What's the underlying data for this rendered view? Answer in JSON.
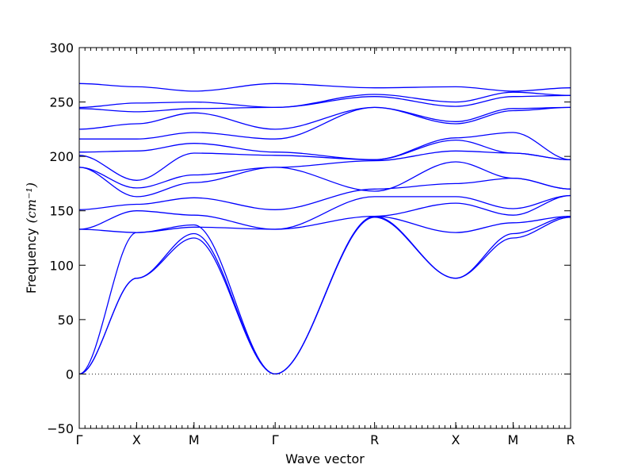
{
  "chart_data": {
    "type": "line",
    "xlabel": "Wave vector",
    "ylabel": "Frequency",
    "ylabel_unit": "(cm⁻¹)",
    "ylim": [
      -50,
      300
    ],
    "yticks": [
      -50,
      0,
      50,
      100,
      150,
      200,
      250,
      300
    ],
    "grid": false,
    "legend": "none",
    "zero_line": "dotted",
    "line_color": "#0000ff",
    "path_labels": [
      "Γ",
      "X",
      "M",
      "Γ",
      "R",
      "X",
      "M",
      "R"
    ],
    "path_positions": [
      0,
      0.5,
      1.0,
      1.707,
      2.573,
      3.28,
      3.78,
      4.281
    ],
    "bands": [
      {
        "name": "",
        "x": [
          0,
          0.5,
          1.0,
          1.707,
          2.573,
          3.28,
          3.78,
          4.281
        ],
        "y": [
          0,
          88,
          125,
          0,
          144,
          88,
          125,
          144
        ]
      },
      {
        "name": "",
        "x": [
          0,
          0.5,
          1.0,
          1.707,
          2.573,
          3.28,
          3.78,
          4.281
        ],
        "y": [
          0,
          88,
          129,
          0,
          145,
          88,
          129,
          145
        ]
      },
      {
        "name": "",
        "x": [
          0,
          0.5,
          1.0,
          1.707,
          2.573,
          3.28,
          3.78,
          4.281
        ],
        "y": [
          0,
          130,
          137,
          0,
          145,
          130,
          139,
          145
        ]
      },
      {
        "name": "",
        "x": [
          0,
          0.5,
          1.0,
          1.707,
          2.573,
          3.28,
          3.78,
          4.281
        ],
        "y": [
          133,
          130,
          135,
          133,
          145,
          157,
          146,
          164
        ]
      },
      {
        "name": "",
        "x": [
          0,
          0.5,
          1.0,
          1.707,
          2.573,
          3.28,
          3.78,
          4.281
        ],
        "y": [
          133,
          150,
          146,
          133,
          163,
          163,
          152,
          164
        ]
      },
      {
        "name": "",
        "x": [
          0,
          0.5,
          1.0,
          1.707,
          2.573,
          3.28,
          3.78,
          4.281
        ],
        "y": [
          151,
          156,
          162,
          151,
          170,
          175,
          180,
          170
        ]
      },
      {
        "name": "",
        "x": [
          0,
          0.5,
          1.0,
          1.707,
          2.573,
          3.28,
          3.78,
          4.281
        ],
        "y": [
          190,
          163,
          176,
          190,
          168,
          195,
          180,
          170
        ]
      },
      {
        "name": "",
        "x": [
          0,
          0.5,
          1.0,
          1.707,
          2.573,
          3.28,
          3.78,
          4.281
        ],
        "y": [
          190,
          171,
          183,
          190,
          196,
          205,
          203,
          197
        ]
      },
      {
        "name": "",
        "x": [
          0,
          0.5,
          1.0,
          1.707,
          2.573,
          3.28,
          3.78,
          4.281
        ],
        "y": [
          201,
          178,
          203,
          201,
          197,
          215,
          203,
          197
        ]
      },
      {
        "name": "",
        "x": [
          0,
          0.5,
          1.0,
          1.707,
          2.573,
          3.28,
          3.78,
          4.281
        ],
        "y": [
          204,
          205,
          212,
          204,
          197,
          217,
          222,
          197
        ]
      },
      {
        "name": "",
        "x": [
          0,
          0.5,
          1.0,
          1.707,
          2.573,
          3.28,
          3.78,
          4.281
        ],
        "y": [
          216,
          216,
          222,
          216,
          245,
          230,
          242,
          245
        ]
      },
      {
        "name": "",
        "x": [
          0,
          0.5,
          1.0,
          1.707,
          2.573,
          3.28,
          3.78,
          4.281
        ],
        "y": [
          225,
          230,
          240,
          225,
          245,
          232,
          244,
          245
        ]
      },
      {
        "name": "",
        "x": [
          0,
          0.5,
          1.0,
          1.707,
          2.573,
          3.28,
          3.78,
          4.281
        ],
        "y": [
          244,
          241,
          244,
          245,
          255,
          246,
          255,
          256
        ]
      },
      {
        "name": "",
        "x": [
          0,
          0.5,
          1.0,
          1.707,
          2.573,
          3.28,
          3.78,
          4.281
        ],
        "y": [
          245,
          249,
          250,
          245,
          257,
          250,
          259,
          256
        ]
      },
      {
        "name": "",
        "x": [
          0,
          0.5,
          1.0,
          1.707,
          2.573,
          3.28,
          3.78,
          4.281
        ],
        "y": [
          267,
          264,
          260,
          267,
          263,
          264,
          260,
          263
        ]
      }
    ]
  }
}
